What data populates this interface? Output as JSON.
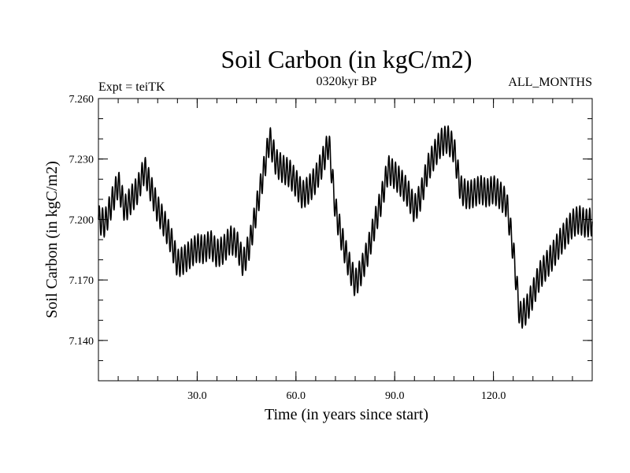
{
  "chart_data": {
    "type": "line",
    "title": "Soil Carbon (in kgC/m2)",
    "subtitle": "0320kyr BP",
    "experiment_label": "Expt = teiTK",
    "period_label": "ALL_MONTHS",
    "xlabel": "Time (in years since start)",
    "ylabel": "Soil Carbon (in kgC/m2)",
    "xlim": [
      0,
      150
    ],
    "ylim": [
      7.12,
      7.26
    ],
    "x_ticks": [
      30,
      60,
      90,
      120
    ],
    "x_tick_labels": [
      "30.0",
      "60.0",
      "90.0",
      "120.0"
    ],
    "y_ticks": [
      7.14,
      7.17,
      7.2,
      7.23,
      7.26
    ],
    "y_tick_labels": [
      "7.140",
      "7.170",
      "7.200",
      "7.230",
      "7.260"
    ],
    "series": [
      {
        "name": "Soil Carbon",
        "color": "#000000",
        "monthly_cycle_amplitude": 0.007,
        "trend": {
          "x": [
            0,
            2,
            4,
            6,
            8,
            10,
            12,
            14,
            16,
            18,
            20,
            22,
            24,
            26,
            28,
            30,
            32,
            34,
            36,
            38,
            40,
            42,
            44,
            46,
            48,
            50,
            52,
            54,
            56,
            58,
            60,
            62,
            64,
            66,
            68,
            70,
            72,
            74,
            76,
            78,
            80,
            82,
            84,
            86,
            88,
            90,
            92,
            94,
            96,
            98,
            100,
            102,
            104,
            106,
            108,
            110,
            112,
            114,
            116,
            118,
            120,
            122,
            124,
            126,
            128,
            130,
            132,
            134,
            136,
            138,
            140,
            142,
            144,
            146,
            148,
            150
          ],
          "y": [
            7.2,
            7.198,
            7.208,
            7.218,
            7.205,
            7.21,
            7.215,
            7.225,
            7.215,
            7.205,
            7.198,
            7.19,
            7.178,
            7.18,
            7.183,
            7.186,
            7.185,
            7.188,
            7.183,
            7.185,
            7.19,
            7.188,
            7.178,
            7.188,
            7.205,
            7.222,
            7.24,
            7.228,
            7.225,
            7.223,
            7.218,
            7.212,
            7.215,
            7.22,
            7.228,
            7.238,
            7.205,
            7.19,
            7.178,
            7.168,
            7.175,
            7.185,
            7.198,
            7.21,
            7.225,
            7.222,
            7.218,
            7.213,
            7.205,
            7.212,
            7.225,
            7.232,
            7.238,
            7.24,
            7.235,
            7.215,
            7.212,
            7.213,
            7.215,
            7.213,
            7.215,
            7.212,
            7.208,
            7.185,
            7.152,
            7.155,
            7.163,
            7.172,
            7.177,
            7.182,
            7.188,
            7.193,
            7.198,
            7.2,
            7.198,
            7.199
          ]
        }
      }
    ]
  }
}
